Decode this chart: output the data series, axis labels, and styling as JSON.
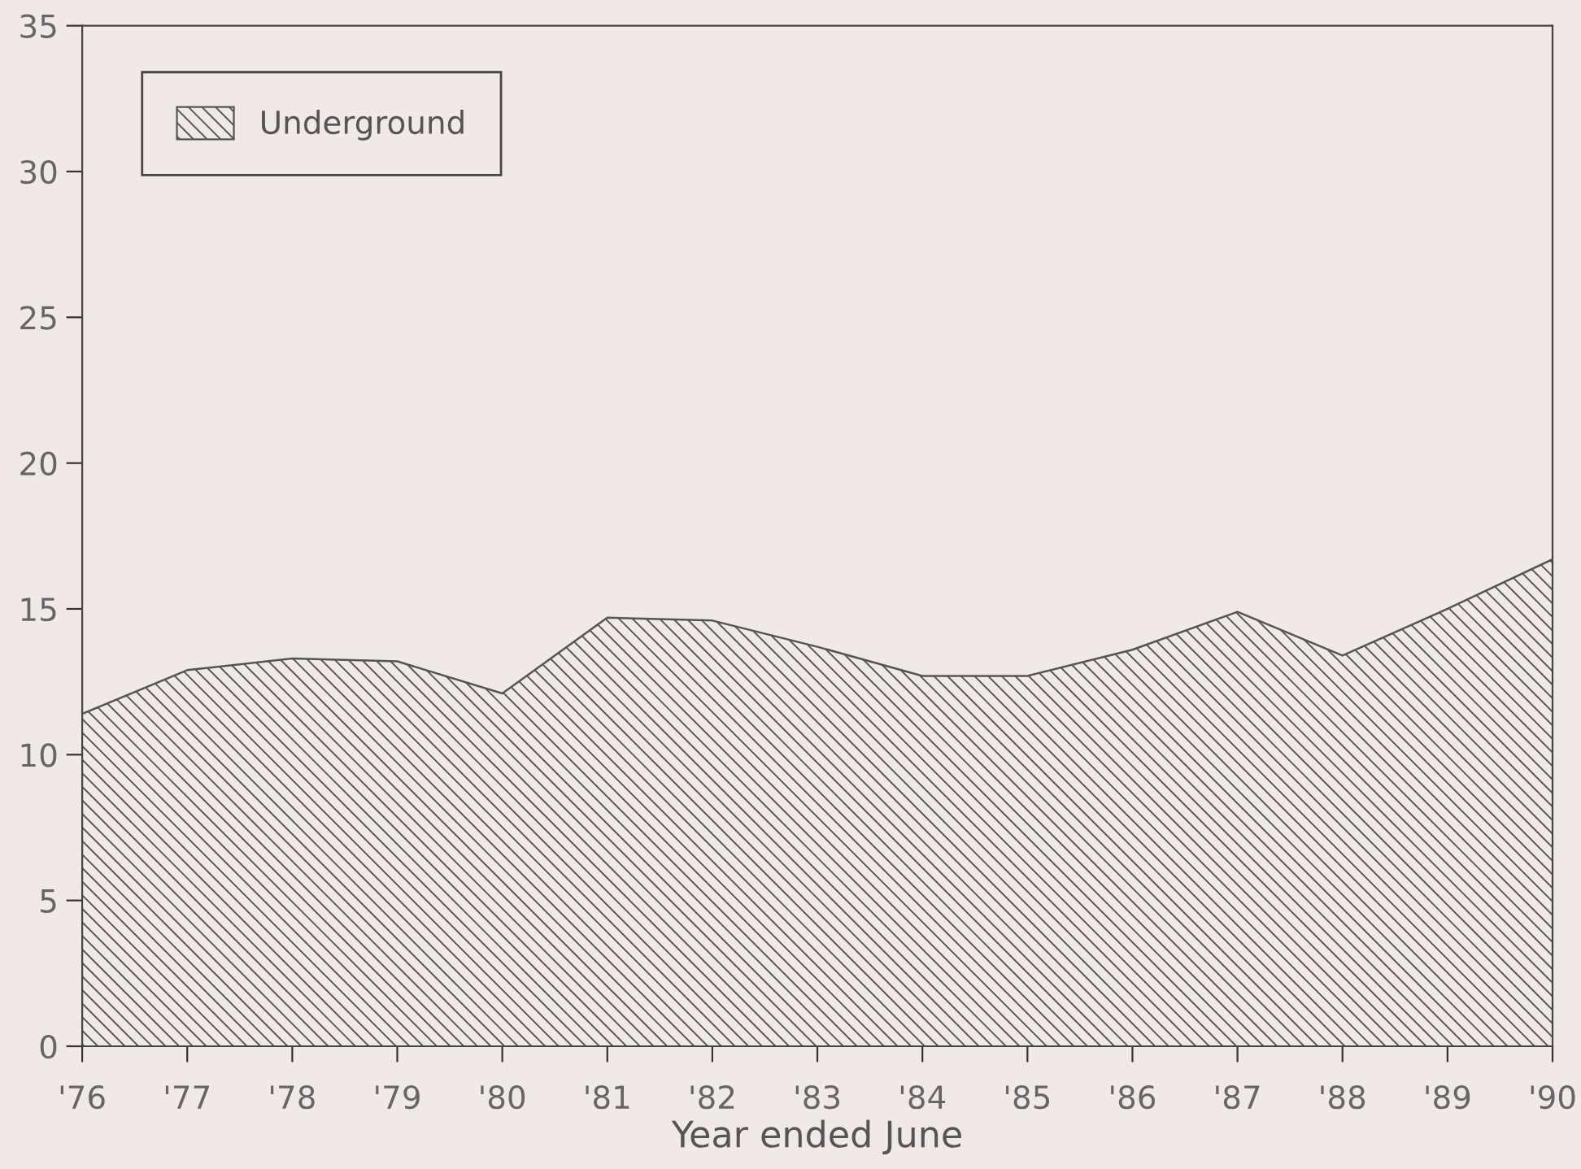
{
  "chart_data": {
    "type": "area",
    "xlabel": "Year ended June",
    "categories": [
      "'76",
      "'77",
      "'78",
      "'79",
      "'80",
      "'81",
      "'82",
      "'83",
      "'84",
      "'85",
      "'86",
      "'87",
      "'88",
      "'89",
      "'90"
    ],
    "series": [
      {
        "name": "Underground",
        "color": "#555555",
        "values": [
          11.4,
          12.9,
          13.3,
          13.2,
          12.1,
          14.7,
          14.6,
          13.7,
          12.7,
          12.7,
          13.6,
          14.9,
          13.4,
          15.0,
          16.7
        ]
      }
    ],
    "ylim": [
      0,
      35
    ],
    "yticks": [
      0,
      5,
      10,
      15,
      20,
      25,
      30,
      35
    ],
    "grid": false,
    "legend": "top left"
  }
}
